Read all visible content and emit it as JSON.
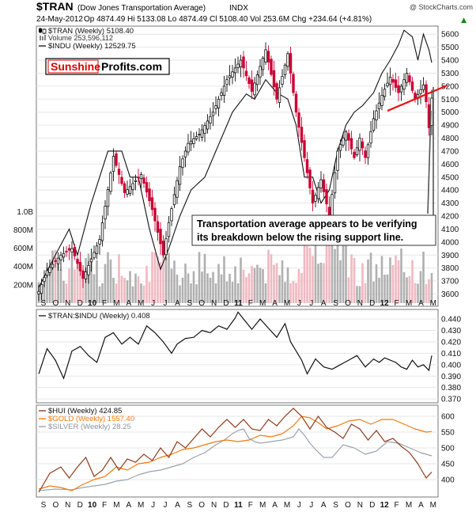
{
  "header": {
    "ticker": "$TRAN",
    "name": "(Dow Jones Transportation Average)",
    "exchange": "INDX",
    "source": "@ StockCharts.com",
    "date": "24-May-2012",
    "quote": "Op 4874.49  Hi 5133.08  Lo 4874.49  Cl 5108.40  Vol 253.6M  Chg +234.64 (+4.81%)",
    "up_arrow": "▲"
  },
  "logo": {
    "part1": "Sunshine",
    "part2": "Profits.com"
  },
  "annotation": {
    "line1": "Transportation average appears to be verifying",
    "line2": "its breakdown below the rising support line."
  },
  "x_axis": {
    "labels": [
      "S",
      "O",
      "N",
      "D",
      "10",
      "F",
      "M",
      "A",
      "M",
      "J",
      "J",
      "A",
      "S",
      "O",
      "N",
      "D",
      "11",
      "F",
      "M",
      "A",
      "M",
      "J",
      "J",
      "A",
      "S",
      "O",
      "N",
      "D",
      "12",
      "F",
      "M",
      "A",
      "M"
    ]
  },
  "colors": {
    "up": "#111111",
    "down": "#cc0033",
    "vol_up": "#b0b0b0",
    "vol_down": "#f0b8c0",
    "support": "#ee1111",
    "hui": "#8b3a1a",
    "gold": "#f07a10",
    "silver": "#9aa3ad",
    "ratio": "#111111",
    "indu": "#111111"
  },
  "chart_data": [
    {
      "type": "candlestick",
      "panel": "main",
      "legend": [
        "$TRAN (Weekly) 5108.40",
        "Volume 253,596,112",
        "$INDU (Weekly) 12529.75"
      ],
      "y_ticks": [
        3600,
        3700,
        3800,
        3900,
        4000,
        4100,
        4200,
        4300,
        4400,
        4500,
        4600,
        4700,
        4800,
        4900,
        5000,
        5100,
        5200,
        5300,
        5400,
        5500,
        5600
      ],
      "ylim": [
        3530,
        5650
      ],
      "volume_ticks": [
        "200M",
        "400M",
        "600M",
        "800M",
        "1.0B"
      ],
      "volume_tick_values": [
        200,
        400,
        600,
        800,
        1000
      ],
      "volume_ylim": [
        0,
        1150
      ],
      "tran_anchors": [
        [
          0,
          3620
        ],
        [
          3,
          3780
        ],
        [
          8,
          3900
        ],
        [
          12,
          3950
        ],
        [
          16,
          3720
        ],
        [
          22,
          4020
        ],
        [
          27,
          4660
        ],
        [
          31,
          4380
        ],
        [
          37,
          4520
        ],
        [
          41,
          4250
        ],
        [
          45,
          3900
        ],
        [
          47,
          4150
        ],
        [
          51,
          4580
        ],
        [
          54,
          4760
        ],
        [
          58,
          4830
        ],
        [
          63,
          5000
        ],
        [
          68,
          5250
        ],
        [
          73,
          5400
        ],
        [
          77,
          5160
        ],
        [
          82,
          5480
        ],
        [
          86,
          5100
        ],
        [
          90,
          5450
        ],
        [
          93,
          5000
        ],
        [
          96,
          4650
        ],
        [
          99,
          4300
        ],
        [
          102,
          4480
        ],
        [
          105,
          4200
        ],
        [
          108,
          4700
        ],
        [
          111,
          4850
        ],
        [
          114,
          4650
        ],
        [
          116,
          4800
        ],
        [
          118,
          4650
        ],
        [
          121,
          4950
        ],
        [
          124,
          5130
        ],
        [
          127,
          5270
        ],
        [
          130,
          5150
        ],
        [
          133,
          5300
        ],
        [
          136,
          5100
        ],
        [
          139,
          5210
        ],
        [
          140,
          5080
        ],
        [
          141,
          4880
        ],
        [
          142,
          5108
        ]
      ],
      "indu_anchors": [
        [
          0,
          3650
        ],
        [
          6,
          3900
        ],
        [
          11,
          4100
        ],
        [
          14,
          3900
        ],
        [
          19,
          4300
        ],
        [
          25,
          4700
        ],
        [
          30,
          4700
        ],
        [
          33,
          4500
        ],
        [
          36,
          4500
        ],
        [
          40,
          4100
        ],
        [
          44,
          3790
        ],
        [
          47,
          3950
        ],
        [
          51,
          4200
        ],
        [
          55,
          4400
        ],
        [
          60,
          4500
        ],
        [
          65,
          4750
        ],
        [
          70,
          5000
        ],
        [
          75,
          5140
        ],
        [
          78,
          5100
        ],
        [
          82,
          5250
        ],
        [
          86,
          5150
        ],
        [
          90,
          5100
        ],
        [
          93,
          4900
        ],
        [
          96,
          4500
        ],
        [
          99,
          4500
        ],
        [
          102,
          4300
        ],
        [
          105,
          4400
        ],
        [
          108,
          4700
        ],
        [
          111,
          4900
        ],
        [
          114,
          5000
        ],
        [
          117,
          5050
        ],
        [
          121,
          5150
        ],
        [
          124,
          5300
        ],
        [
          127,
          5400
        ],
        [
          130,
          5520
        ],
        [
          132,
          5630
        ],
        [
          135,
          5580
        ],
        [
          137,
          5400
        ],
        [
          139,
          5600
        ],
        [
          141,
          5480
        ],
        [
          142,
          5380
        ]
      ],
      "support_line": [
        [
          126,
          5010
        ],
        [
          142,
          5170
        ]
      ]
    },
    {
      "type": "line",
      "panel": "ratio",
      "legend": [
        "$TRAN:$INDU (Weekly) 0.408"
      ],
      "y_ticks": [
        0.37,
        0.38,
        0.39,
        0.4,
        0.41,
        0.42,
        0.43,
        0.44
      ],
      "ylim": [
        0.368,
        0.447
      ],
      "series": [
        {
          "name": "$TRAN:$INDU (Weekly)",
          "anchors": [
            [
              0,
              0.392
            ],
            [
              3,
              0.414
            ],
            [
              6,
              0.404
            ],
            [
              9,
              0.388
            ],
            [
              12,
              0.412
            ],
            [
              15,
              0.416
            ],
            [
              18,
              0.408
            ],
            [
              21,
              0.402
            ],
            [
              24,
              0.424
            ],
            [
              27,
              0.428
            ],
            [
              30,
              0.418
            ],
            [
              33,
              0.424
            ],
            [
              36,
              0.418
            ],
            [
              39,
              0.434
            ],
            [
              42,
              0.428
            ],
            [
              45,
              0.42
            ],
            [
              48,
              0.41
            ],
            [
              50,
              0.418
            ],
            [
              53,
              0.423
            ],
            [
              56,
              0.424
            ],
            [
              59,
              0.43
            ],
            [
              62,
              0.428
            ],
            [
              65,
              0.434
            ],
            [
              68,
              0.431
            ],
            [
              71,
              0.441
            ],
            [
              72,
              0.446
            ],
            [
              74,
              0.44
            ],
            [
              77,
              0.431
            ],
            [
              80,
              0.44
            ],
            [
              83,
              0.432
            ],
            [
              86,
              0.424
            ],
            [
              89,
              0.436
            ],
            [
              91,
              0.42
            ],
            [
              93,
              0.412
            ],
            [
              95,
              0.404
            ],
            [
              97,
              0.392
            ],
            [
              100,
              0.405
            ],
            [
              103,
              0.398
            ],
            [
              106,
              0.396
            ],
            [
              109,
              0.4
            ],
            [
              112,
              0.404
            ],
            [
              115,
              0.408
            ],
            [
              118,
              0.398
            ],
            [
              121,
              0.405
            ],
            [
              123,
              0.402
            ],
            [
              125,
              0.406
            ],
            [
              127,
              0.404
            ],
            [
              129,
              0.402
            ],
            [
              131,
              0.398
            ],
            [
              133,
              0.396
            ],
            [
              135,
              0.404
            ],
            [
              137,
              0.398
            ],
            [
              139,
              0.4
            ],
            [
              141,
              0.395
            ],
            [
              142,
              0.408
            ]
          ]
        }
      ]
    },
    {
      "type": "line",
      "panel": "metals",
      "legend": [
        "$HUI (Weekly) 424.85",
        "$GOLD (Weekly) 1557.40",
        "$SILVER (Weekly) 28.25"
      ],
      "y_ticks": [
        400,
        450,
        500,
        550,
        600
      ],
      "ylim": [
        350,
        630
      ],
      "series": [
        {
          "name": "$HUI (Weekly)",
          "anchors": [
            [
              0,
              360
            ],
            [
              4,
              420
            ],
            [
              8,
              440
            ],
            [
              11,
              405
            ],
            [
              14,
              440
            ],
            [
              17,
              470
            ],
            [
              20,
              410
            ],
            [
              23,
              430
            ],
            [
              26,
              470
            ],
            [
              29,
              430
            ],
            [
              32,
              465
            ],
            [
              35,
              455
            ],
            [
              38,
              480
            ],
            [
              41,
              460
            ],
            [
              44,
              500
            ],
            [
              47,
              470
            ],
            [
              50,
              520
            ],
            [
              53,
              500
            ],
            [
              56,
              530
            ],
            [
              59,
              560
            ],
            [
              62,
              535
            ],
            [
              65,
              565
            ],
            [
              68,
              590
            ],
            [
              71,
              565
            ],
            [
              74,
              590
            ],
            [
              77,
              560
            ],
            [
              80,
              555
            ],
            [
              83,
              590
            ],
            [
              86,
              570
            ],
            [
              89,
              600
            ],
            [
              92,
              625
            ],
            [
              95,
              600
            ],
            [
              98,
              560
            ],
            [
              101,
              600
            ],
            [
              104,
              565
            ],
            [
              107,
              550
            ],
            [
              110,
              530
            ],
            [
              113,
              575
            ],
            [
              116,
              560
            ],
            [
              119,
              525
            ],
            [
              122,
              555
            ],
            [
              125,
              520
            ],
            [
              128,
              530
            ],
            [
              131,
              505
            ],
            [
              134,
              485
            ],
            [
              137,
              450
            ],
            [
              140,
              405
            ],
            [
              142,
              424
            ]
          ]
        },
        {
          "name": "$GOLD (Weekly)",
          "anchors": [
            [
              0,
              370
            ],
            [
              4,
              380
            ],
            [
              8,
              375
            ],
            [
              12,
              365
            ],
            [
              16,
              385
            ],
            [
              20,
              400
            ],
            [
              24,
              410
            ],
            [
              28,
              440
            ],
            [
              32,
              430
            ],
            [
              36,
              450
            ],
            [
              40,
              455
            ],
            [
              44,
              470
            ],
            [
              48,
              480
            ],
            [
              52,
              495
            ],
            [
              56,
              500
            ],
            [
              60,
              510
            ],
            [
              64,
              520
            ],
            [
              68,
              525
            ],
            [
              72,
              520
            ],
            [
              76,
              525
            ],
            [
              80,
              540
            ],
            [
              84,
              535
            ],
            [
              88,
              545
            ],
            [
              92,
              570
            ],
            [
              95,
              600
            ],
            [
              98,
              595
            ],
            [
              101,
              580
            ],
            [
              104,
              560
            ],
            [
              108,
              570
            ],
            [
              112,
              585
            ],
            [
              116,
              590
            ],
            [
              120,
              575
            ],
            [
              124,
              590
            ],
            [
              128,
              590
            ],
            [
              132,
              575
            ],
            [
              136,
              560
            ],
            [
              140,
              550
            ],
            [
              142,
              552
            ]
          ]
        },
        {
          "name": "$SILVER (Weekly)",
          "anchors": [
            [
              0,
              365
            ],
            [
              6,
              370
            ],
            [
              12,
              368
            ],
            [
              16,
              375
            ],
            [
              20,
              380
            ],
            [
              24,
              385
            ],
            [
              28,
              395
            ],
            [
              32,
              400
            ],
            [
              36,
              415
            ],
            [
              40,
              425
            ],
            [
              44,
              430
            ],
            [
              48,
              440
            ],
            [
              52,
              450
            ],
            [
              56,
              470
            ],
            [
              60,
              485
            ],
            [
              64,
              510
            ],
            [
              67,
              525
            ],
            [
              70,
              545
            ],
            [
              72,
              555
            ],
            [
              74,
              560
            ],
            [
              76,
              530
            ],
            [
              78,
              520
            ],
            [
              80,
              515
            ],
            [
              84,
              520
            ],
            [
              88,
              525
            ],
            [
              92,
              535
            ],
            [
              94,
              560
            ],
            [
              96,
              540
            ],
            [
              98,
              515
            ],
            [
              100,
              495
            ],
            [
              103,
              470
            ],
            [
              106,
              470
            ],
            [
              110,
              510
            ],
            [
              114,
              500
            ],
            [
              118,
              480
            ],
            [
              122,
              490
            ],
            [
              126,
              520
            ],
            [
              130,
              515
            ],
            [
              134,
              500
            ],
            [
              138,
              485
            ],
            [
              142,
              475
            ]
          ]
        }
      ]
    }
  ]
}
